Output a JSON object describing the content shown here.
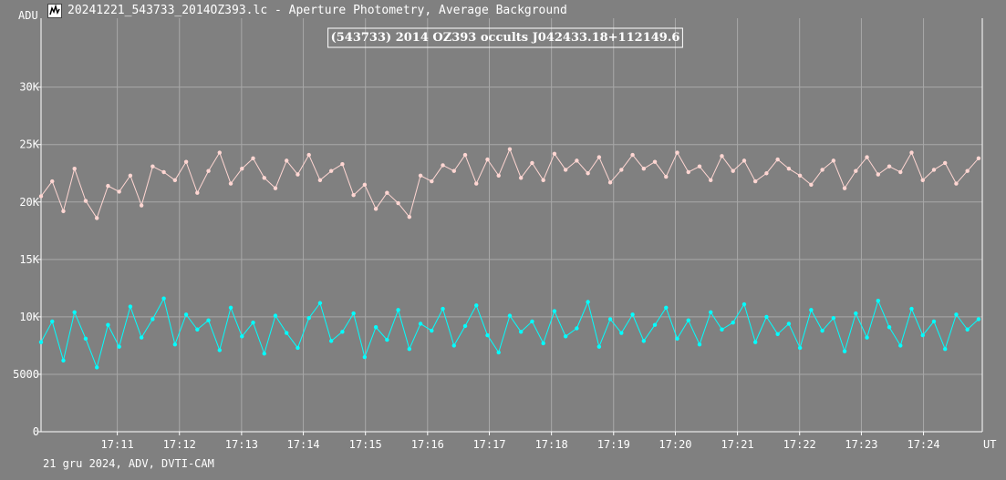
{
  "window": {
    "title": "20241221_543733_2014OZ393.lc - Aperture Photometry, Average Background",
    "icon": "lightcurve-app-icon"
  },
  "footer": "21 gru 2024, ADV, DVTI-CAM",
  "colors": {
    "background": "#808080",
    "grid": "#a8a8a8",
    "axis": "#ffffff",
    "target_series": "#ffd6d2",
    "comparison_series": "#00ffff",
    "title_box_border": "#ffffff"
  },
  "chart_data": {
    "type": "line",
    "title": "(543733) 2014 OZ393 occults J042433.18+112149.6",
    "ylabel": "ADU",
    "xlabel": "UT",
    "ylim": [
      0,
      36000
    ],
    "xlim": [
      17.1628,
      17.4158
    ],
    "y_ticks": [
      0,
      5000,
      10000,
      15000,
      20000,
      25000,
      30000
    ],
    "y_tick_labels": [
      "0",
      "5000",
      "10K",
      "15K",
      "20K",
      "25K",
      "30K"
    ],
    "x_ticks": [
      17.1833,
      17.2,
      17.2167,
      17.2333,
      17.25,
      17.2667,
      17.2833,
      17.3,
      17.3167,
      17.3333,
      17.35,
      17.3667,
      17.3833,
      17.4
    ],
    "x_tick_labels": [
      "17:11",
      "17:12",
      "17:13",
      "17:14",
      "17:15",
      "17:16",
      "17:17",
      "17:18",
      "17:19",
      "17:20",
      "17:21",
      "17:22",
      "17:23",
      "17:24"
    ],
    "marker": "dot",
    "series": [
      {
        "x": [
          17.1628,
          17.1658,
          17.1688,
          17.1718,
          17.1748,
          17.1778,
          17.1808,
          17.1838,
          17.1868,
          17.1898,
          17.1928,
          17.1958,
          17.1988,
          17.2018,
          17.2048,
          17.2078,
          17.2108,
          17.2138,
          17.2168,
          17.2198,
          17.2228,
          17.2258,
          17.2288,
          17.2318,
          17.2348,
          17.2378,
          17.2408,
          17.2438,
          17.2468,
          17.2498,
          17.2528,
          17.2558,
          17.2588,
          17.2618,
          17.2648,
          17.2678,
          17.2708,
          17.2738,
          17.2768,
          17.2798,
          17.2828,
          17.2858,
          17.2888,
          17.2918,
          17.2948,
          17.2978,
          17.3008,
          17.3038,
          17.3068,
          17.3098,
          17.3128,
          17.3158,
          17.3188,
          17.3218,
          17.3248,
          17.3278,
          17.3308,
          17.3338,
          17.3368,
          17.3398,
          17.3428,
          17.3458,
          17.3488,
          17.3518,
          17.3548,
          17.3578,
          17.3608,
          17.3638,
          17.3668,
          17.3698,
          17.3728,
          17.3758,
          17.3788,
          17.3818,
          17.3848,
          17.3878,
          17.3908,
          17.3938,
          17.3968,
          17.3998,
          17.4028,
          17.4058,
          17.4088,
          17.4118,
          17.4148
        ],
        "values": [
          20500,
          21800,
          19200,
          22900,
          20100,
          18600,
          21400,
          20900,
          22300,
          19700,
          23100,
          22600,
          21900,
          23500,
          20800,
          22700,
          24300,
          21600,
          22900,
          23800,
          22100,
          21200,
          23600,
          22400,
          24100,
          21900,
          22700,
          23300,
          20600,
          21500,
          19400,
          20800,
          19900,
          18700,
          22300,
          21800,
          23200,
          22700,
          24100,
          21600,
          23700,
          22300,
          24600,
          22100,
          23400,
          21900,
          24200,
          22800,
          23600,
          22500,
          23900,
          21700,
          22800,
          24100,
          22900,
          23500,
          22200,
          24300,
          22600,
          23100,
          21900,
          24000,
          22700,
          23600,
          21800,
          22500,
          23700,
          22900,
          22300,
          21500,
          22800,
          23600,
          21200,
          22700,
          23900,
          22400,
          23100,
          22600,
          24300,
          21900,
          22800,
          23400,
          21600,
          22700,
          23800
        ]
      },
      {
        "x": [
          17.1628,
          17.1658,
          17.1688,
          17.1718,
          17.1748,
          17.1778,
          17.1808,
          17.1838,
          17.1868,
          17.1898,
          17.1928,
          17.1958,
          17.1988,
          17.2018,
          17.2048,
          17.2078,
          17.2108,
          17.2138,
          17.2168,
          17.2198,
          17.2228,
          17.2258,
          17.2288,
          17.2318,
          17.2348,
          17.2378,
          17.2408,
          17.2438,
          17.2468,
          17.2498,
          17.2528,
          17.2558,
          17.2588,
          17.2618,
          17.2648,
          17.2678,
          17.2708,
          17.2738,
          17.2768,
          17.2798,
          17.2828,
          17.2858,
          17.2888,
          17.2918,
          17.2948,
          17.2978,
          17.3008,
          17.3038,
          17.3068,
          17.3098,
          17.3128,
          17.3158,
          17.3188,
          17.3218,
          17.3248,
          17.3278,
          17.3308,
          17.3338,
          17.3368,
          17.3398,
          17.3428,
          17.3458,
          17.3488,
          17.3518,
          17.3548,
          17.3578,
          17.3608,
          17.3638,
          17.3668,
          17.3698,
          17.3728,
          17.3758,
          17.3788,
          17.3818,
          17.3848,
          17.3878,
          17.3908,
          17.3938,
          17.3968,
          17.3998,
          17.4028,
          17.4058,
          17.4088,
          17.4118,
          17.4148
        ],
        "values": [
          7800,
          9600,
          6200,
          10400,
          8100,
          5600,
          9300,
          7400,
          10900,
          8200,
          9800,
          11600,
          7600,
          10200,
          8900,
          9700,
          7100,
          10800,
          8300,
          9500,
          6800,
          10100,
          8600,
          7300,
          9900,
          11200,
          7900,
          8700,
          10300,
          6500,
          9100,
          8000,
          10600,
          7200,
          9400,
          8800,
          10700,
          7500,
          9200,
          11000,
          8400,
          6900,
          10100,
          8700,
          9600,
          7700,
          10500,
          8300,
          9000,
          11300,
          7400,
          9800,
          8600,
          10200,
          7900,
          9300,
          10800,
          8100,
          9700,
          7600,
          10400,
          8900,
          9500,
          11100,
          7800,
          10000,
          8500,
          9400,
          7300,
          10600,
          8800,
          9900,
          7000,
          10300,
          8200,
          11400,
          9100,
          7500,
          10700,
          8400,
          9600,
          7200,
          10200,
          8900,
          9800
        ]
      }
    ]
  }
}
